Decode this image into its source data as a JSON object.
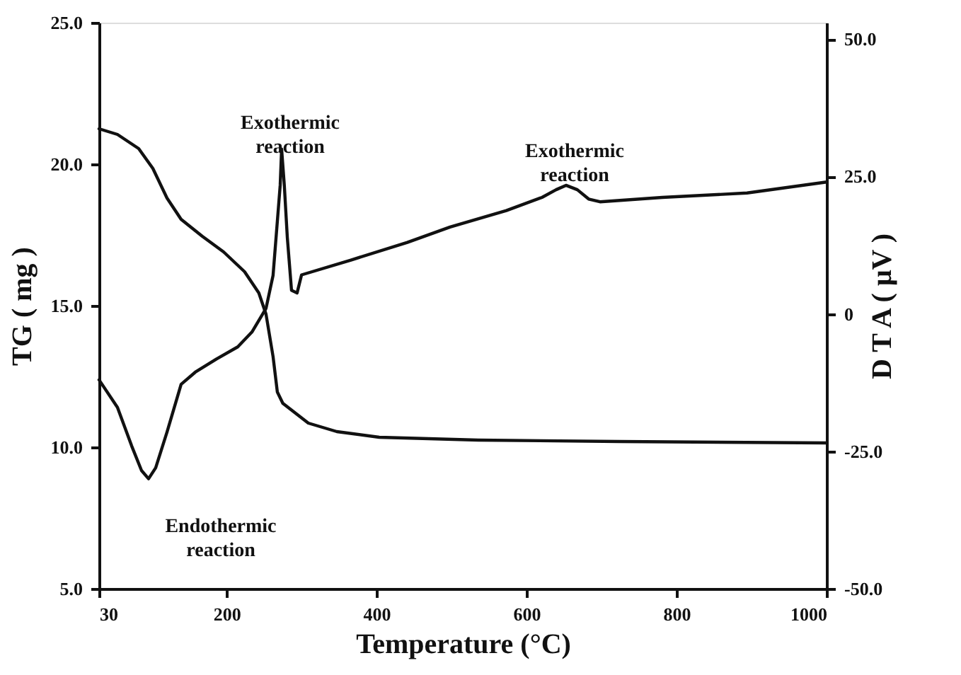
{
  "chart_data": {
    "type": "line",
    "xlabel": "Temperature (°C)",
    "ylabel": "TG ( mg )",
    "y2label": "D T A ( μV )",
    "xlim": [
      30,
      1000
    ],
    "xticks": [
      30,
      200,
      400,
      600,
      800,
      1000
    ],
    "ylim": [
      5,
      25
    ],
    "yticks": [
      {
        "value": 5,
        "label": "5.0"
      },
      {
        "value": 10,
        "label": "10.0"
      },
      {
        "value": 15,
        "label": "15.0"
      },
      {
        "value": 20,
        "label": "20.0"
      },
      {
        "value": 25,
        "label": "25.0"
      }
    ],
    "y2lim": [
      -50,
      53
    ],
    "y2ticks": [
      {
        "value": -50,
        "label": "-50.0"
      },
      {
        "value": -25,
        "label": "-25.0"
      },
      0,
      {
        "value": 25,
        "label": "25.0"
      },
      {
        "value": 50,
        "label": "50.0"
      }
    ],
    "grid": false,
    "marker": "none",
    "line_style": "solid",
    "series": [
      {
        "color": "#111111",
        "x": [
          30,
          54.5,
          82.8,
          101.7,
          120.6,
          139.4,
          167.7,
          196,
          224,
          243,
          252.6,
          262,
          267.7,
          275,
          309,
          347,
          403.6,
          535.7,
          724,
          1000
        ],
        "values": [
          21.25,
          21.05,
          20.55,
          19.85,
          18.8,
          18.05,
          17.45,
          16.9,
          16.2,
          15.45,
          14.7,
          13.2,
          11.95,
          11.55,
          10.85,
          10.55,
          10.35,
          10.25,
          10.2,
          10.15
        ]
      },
      {
        "color": "#111111",
        "axis": "y2",
        "x": [
          30,
          54.5,
          73.4,
          86.6,
          96,
          105.5,
          120.6,
          139.4,
          158.3,
          186.6,
          214.9,
          233.8,
          252.6,
          262,
          271.5,
          273.4,
          277,
          281,
          286.6,
          294,
          300,
          365.8,
          441,
          498,
          573,
          620.6,
          639.4,
          652.6,
          667.7,
          682.8,
          697.9,
          781,
          894,
          1000
        ],
        "values": [
          -12,
          -17,
          -24,
          -28.5,
          -30,
          -28,
          -21.5,
          -12.8,
          -10.6,
          -8.2,
          -6,
          -3.3,
          1,
          7,
          23.4,
          30,
          23.4,
          13.9,
          4.3,
          3.8,
          7.1,
          9.8,
          13,
          15.8,
          18.8,
          21.2,
          22.6,
          23.4,
          22.6,
          20.9,
          20.4,
          21.2,
          22,
          24
        ]
      }
    ],
    "annotations": [
      "Exothermic reaction",
      "Endothermic reaction",
      "Exothermic reaction"
    ]
  }
}
